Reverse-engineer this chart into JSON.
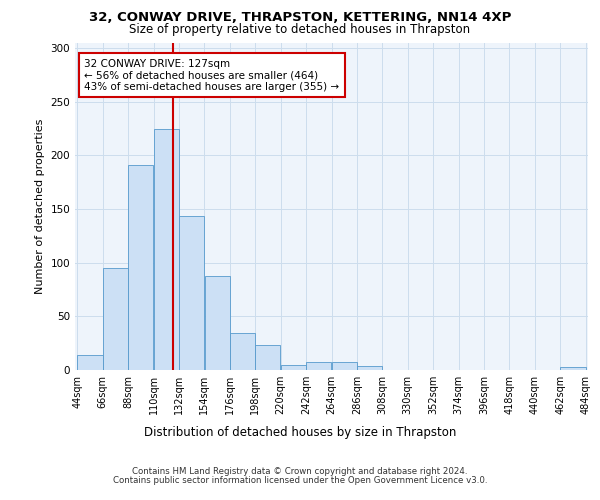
{
  "title_line1": "32, CONWAY DRIVE, THRAPSTON, KETTERING, NN14 4XP",
  "title_line2": "Size of property relative to detached houses in Thrapston",
  "xlabel": "Distribution of detached houses by size in Thrapston",
  "ylabel": "Number of detached properties",
  "footer_line1": "Contains HM Land Registry data © Crown copyright and database right 2024.",
  "footer_line2": "Contains public sector information licensed under the Open Government Licence v3.0.",
  "annotation_line1": "32 CONWAY DRIVE: 127sqm",
  "annotation_line2": "← 56% of detached houses are smaller (464)",
  "annotation_line3": "43% of semi-detached houses are larger (355) →",
  "bar_edges": [
    44,
    66,
    88,
    110,
    132,
    154,
    176,
    198,
    220,
    242,
    264,
    286,
    308,
    330,
    352,
    374,
    396,
    418,
    440,
    462,
    484
  ],
  "bar_heights": [
    14,
    95,
    191,
    224,
    143,
    88,
    34,
    23,
    5,
    7,
    7,
    4,
    0,
    0,
    0,
    0,
    0,
    0,
    0,
    3
  ],
  "bar_color": "#cce0f5",
  "bar_edge_color": "#5599cc",
  "vline_x": 127,
  "vline_color": "#cc0000",
  "ylim": [
    0,
    305
  ],
  "yticks": [
    0,
    50,
    100,
    150,
    200,
    250,
    300
  ],
  "grid_color": "#ccdded",
  "background_color": "#eef4fb"
}
